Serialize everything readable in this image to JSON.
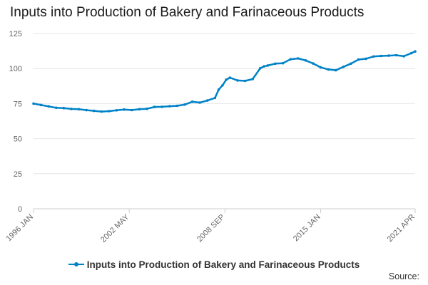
{
  "title": "Inputs into Production of Bakery and Farinaceous Products",
  "source_label": "Source:",
  "colors": {
    "series": "#0082c8",
    "grid": "#e6e6e6",
    "axis": "#cccccc",
    "text": "#666666"
  },
  "chart_data": {
    "type": "line",
    "title": "Inputs into Production of Bakery and Farinaceous Products",
    "xlabel": "",
    "ylabel": "",
    "ylim": [
      0,
      125
    ],
    "yticks": [
      0,
      25,
      50,
      75,
      100,
      125
    ],
    "xlim": [
      "1996-01",
      "2021-04"
    ],
    "xtick_labels": [
      {
        "date": "1996-01",
        "label": "1996 JAN"
      },
      {
        "date": "2002-05",
        "label": "2002 MAY"
      },
      {
        "date": "2008-09",
        "label": "2008 SEP"
      },
      {
        "date": "2015-01",
        "label": "2015 JAN"
      },
      {
        "date": "2021-04",
        "label": "2021 APR"
      }
    ],
    "grid": true,
    "legend_position": "bottom",
    "series": [
      {
        "name": "Inputs into Production of Bakery and Farinaceous Products",
        "x": [
          "1996-01",
          "1996-07",
          "1997-01",
          "1997-07",
          "1998-01",
          "1998-07",
          "1999-01",
          "1999-07",
          "2000-01",
          "2000-07",
          "2001-01",
          "2001-07",
          "2002-01",
          "2002-07",
          "2003-01",
          "2003-07",
          "2004-01",
          "2004-07",
          "2005-01",
          "2005-07",
          "2006-01",
          "2006-07",
          "2007-01",
          "2007-07",
          "2008-01",
          "2008-04",
          "2008-07",
          "2008-10",
          "2009-01",
          "2009-07",
          "2010-01",
          "2010-07",
          "2011-01",
          "2011-04",
          "2011-07",
          "2012-01",
          "2012-07",
          "2013-01",
          "2013-07",
          "2014-01",
          "2014-07",
          "2015-01",
          "2015-07",
          "2016-01",
          "2016-07",
          "2017-01",
          "2017-07",
          "2018-01",
          "2018-07",
          "2019-01",
          "2019-07",
          "2020-01",
          "2020-07",
          "2021-01",
          "2021-04"
        ],
        "values": [
          75.0,
          74.0,
          73.0,
          72.0,
          71.8,
          71.2,
          71.0,
          70.3,
          69.8,
          69.3,
          69.6,
          70.2,
          70.8,
          70.4,
          71.0,
          71.3,
          72.6,
          72.7,
          73.1,
          73.4,
          74.3,
          76.3,
          75.7,
          77.2,
          79.0,
          85.0,
          88.0,
          92.0,
          93.5,
          91.5,
          91.2,
          92.5,
          100.2,
          101.5,
          102.2,
          103.5,
          103.8,
          106.6,
          107.2,
          105.8,
          103.6,
          100.8,
          99.4,
          98.8,
          101.2,
          103.5,
          106.4,
          107.0,
          108.6,
          109.0,
          109.2,
          109.5,
          108.8,
          111.0,
          112.2
        ]
      }
    ]
  }
}
